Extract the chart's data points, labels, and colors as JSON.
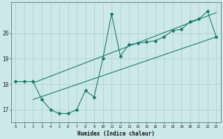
{
  "xlabel": "Humidex (Indice chaleur)",
  "ylabel": "",
  "background_color": "#cce8e8",
  "line_color": "#1a7a6e",
  "grid_color": "#aacfcf",
  "xlim": [
    -0.5,
    23.5
  ],
  "ylim": [
    16.5,
    21.2
  ],
  "yticks": [
    17,
    18,
    19,
    20
  ],
  "xticks": [
    0,
    1,
    2,
    3,
    4,
    5,
    6,
    7,
    8,
    9,
    10,
    11,
    12,
    13,
    14,
    15,
    16,
    17,
    18,
    19,
    20,
    21,
    22,
    23
  ],
  "curve1_x": [
    0,
    1,
    2,
    3,
    4,
    5,
    6,
    7,
    8,
    9,
    10,
    11,
    12,
    13,
    14,
    15,
    16,
    17,
    18,
    19,
    20,
    21,
    22,
    23
  ],
  "curve1_y": [
    18.1,
    18.1,
    18.1,
    17.4,
    17.0,
    16.85,
    16.85,
    17.0,
    17.75,
    17.5,
    19.0,
    20.75,
    19.1,
    19.55,
    19.6,
    19.65,
    19.7,
    19.85,
    20.1,
    20.15,
    20.45,
    20.55,
    20.85,
    19.85
  ],
  "curve2_x": [
    2,
    23
  ],
  "curve2_y": [
    17.4,
    19.85
  ],
  "curve3_x": [
    2,
    23
  ],
  "curve3_y": [
    18.05,
    20.8
  ]
}
